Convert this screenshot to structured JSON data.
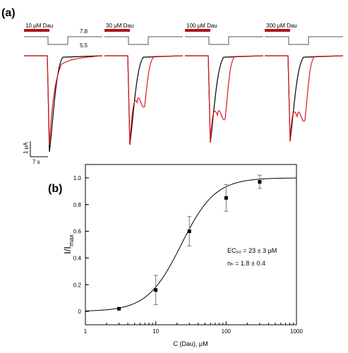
{
  "panel_a": {
    "label": "(a)",
    "ph_high": "7.8",
    "ph_low": "5.5",
    "scale_current": "1 μA",
    "scale_time": "7 s",
    "applications": [
      {
        "label": "10 μM Dau",
        "conc": 10
      },
      {
        "label": "30 μM Dau",
        "conc": 30
      },
      {
        "label": "100 μM Dau",
        "conc": 100
      },
      {
        "label": "300 μM Dau",
        "conc": 300
      }
    ]
  },
  "panel_b": {
    "label": "(b)",
    "annotation_ec50": "EC₅₀ = 23 ± 3 μM",
    "annotation_nh": "nₕ = 1.8 ± 0.4"
  },
  "chart_data": {
    "type": "scatter",
    "xlabel": "C (Dau), μM",
    "ylabel_main": "I/I",
    "ylabel_sub": "max",
    "xscale": "log",
    "xlim": [
      1,
      1000
    ],
    "ylim": [
      -0.1,
      1.1
    ],
    "xticks": [
      1,
      10,
      100,
      1000
    ],
    "xtick_labels": [
      "1",
      "10",
      "100",
      "1000"
    ],
    "yticks": [
      0.0,
      0.2,
      0.4,
      0.6,
      0.8,
      1.0
    ],
    "ytick_labels": [
      "0",
      "0.2",
      "0.4",
      "0.6",
      "0.8",
      "1.0"
    ],
    "points": [
      {
        "x": 3,
        "y": 0.02,
        "err": 0.0
      },
      {
        "x": 10,
        "y": 0.16,
        "err": 0.11
      },
      {
        "x": 30,
        "y": 0.6,
        "err": 0.11
      },
      {
        "x": 100,
        "y": 0.85,
        "err": 0.1
      },
      {
        "x": 300,
        "y": 0.97,
        "err": 0.05
      }
    ],
    "fit": {
      "ec50": 23,
      "nh": 1.8
    }
  }
}
